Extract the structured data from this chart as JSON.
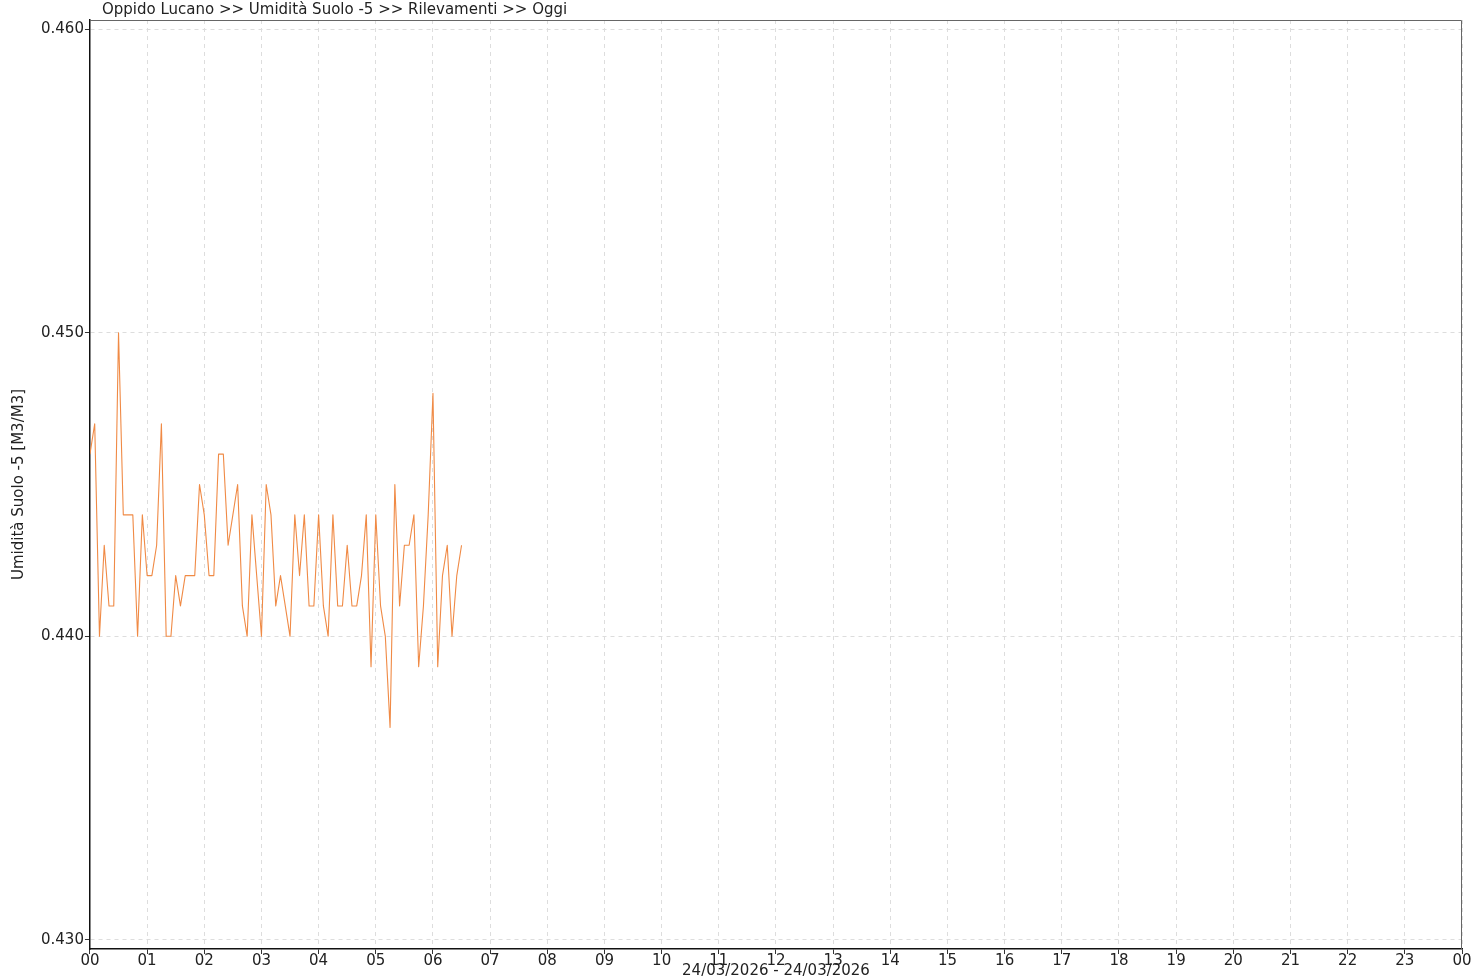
{
  "chart_data": {
    "type": "line",
    "title": "Oppido Lucano >> Umidità Suolo -5 >> Rilevamenti >> Oggi",
    "xlabel": "24/03/2026 - 24/03/2026",
    "ylabel": "Umidità Suolo -5 [M3/M3]",
    "x": [
      "2026-03-24T00:00",
      "2026-03-24T00:05",
      "2026-03-24T00:10",
      "2026-03-24T00:15",
      "2026-03-24T00:20",
      "2026-03-24T00:25",
      "2026-03-24T00:30",
      "2026-03-24T00:35",
      "2026-03-24T00:40",
      "2026-03-24T00:45",
      "2026-03-24T00:50",
      "2026-03-24T00:55",
      "2026-03-24T01:00",
      "2026-03-24T01:05",
      "2026-03-24T01:10",
      "2026-03-24T01:15",
      "2026-03-24T01:20",
      "2026-03-24T01:25",
      "2026-03-24T01:30",
      "2026-03-24T01:35",
      "2026-03-24T01:40",
      "2026-03-24T01:45",
      "2026-03-24T01:50",
      "2026-03-24T01:55",
      "2026-03-24T02:00",
      "2026-03-24T02:05",
      "2026-03-24T02:10",
      "2026-03-24T02:15",
      "2026-03-24T02:20",
      "2026-03-24T02:25",
      "2026-03-24T02:30",
      "2026-03-24T02:35",
      "2026-03-24T02:40",
      "2026-03-24T02:45",
      "2026-03-24T02:50",
      "2026-03-24T02:55",
      "2026-03-24T03:00",
      "2026-03-24T03:05",
      "2026-03-24T03:10",
      "2026-03-24T03:15",
      "2026-03-24T03:20",
      "2026-03-24T03:25",
      "2026-03-24T03:30",
      "2026-03-24T03:35",
      "2026-03-24T03:40",
      "2026-03-24T03:45",
      "2026-03-24T03:50",
      "2026-03-24T03:55",
      "2026-03-24T04:00",
      "2026-03-24T04:05",
      "2026-03-24T04:10",
      "2026-03-24T04:15",
      "2026-03-24T04:20",
      "2026-03-24T04:25",
      "2026-03-24T04:30",
      "2026-03-24T04:35",
      "2026-03-24T04:40",
      "2026-03-24T04:45",
      "2026-03-24T04:50",
      "2026-03-24T04:55",
      "2026-03-24T05:00",
      "2026-03-24T05:05",
      "2026-03-24T05:10",
      "2026-03-24T05:15",
      "2026-03-24T05:20",
      "2026-03-24T05:25",
      "2026-03-24T05:30",
      "2026-03-24T05:35",
      "2026-03-24T05:40",
      "2026-03-24T05:45",
      "2026-03-24T05:50",
      "2026-03-24T05:55",
      "2026-03-24T06:00",
      "2026-03-24T06:05",
      "2026-03-24T06:10",
      "2026-03-24T06:15",
      "2026-03-24T06:20",
      "2026-03-24T06:25",
      "2026-03-24T06:30"
    ],
    "series": [
      {
        "color": "#f08a45",
        "values": [
          0.446,
          0.447,
          0.44,
          0.443,
          0.441,
          0.441,
          0.45,
          0.444,
          0.444,
          0.444,
          0.44,
          0.444,
          0.442,
          0.442,
          0.443,
          0.447,
          0.44,
          0.44,
          0.442,
          0.441,
          0.442,
          0.442,
          0.442,
          0.445,
          0.444,
          0.442,
          0.442,
          0.446,
          0.446,
          0.443,
          0.444,
          0.445,
          0.441,
          0.44,
          0.444,
          0.442,
          0.44,
          0.445,
          0.444,
          0.441,
          0.442,
          0.441,
          0.44,
          0.444,
          0.442,
          0.444,
          0.441,
          0.441,
          0.444,
          0.441,
          0.44,
          0.444,
          0.441,
          0.441,
          0.443,
          0.441,
          0.441,
          0.442,
          0.444,
          0.439,
          0.444,
          0.441,
          0.44,
          0.437,
          0.445,
          0.441,
          0.443,
          0.443,
          0.444,
          0.439,
          0.441,
          0.444,
          0.448,
          0.439,
          0.442,
          0.443,
          0.44,
          0.442,
          0.443
        ]
      }
    ],
    "xlim": [
      "2026-03-24T00:00",
      "2026-03-25T00:00"
    ],
    "xticks": [
      {
        "value": "2026-03-24T00:00",
        "label": "00"
      },
      {
        "value": "2026-03-24T01:00",
        "label": "01"
      },
      {
        "value": "2026-03-24T02:00",
        "label": "02"
      },
      {
        "value": "2026-03-24T03:00",
        "label": "03"
      },
      {
        "value": "2026-03-24T04:00",
        "label": "04"
      },
      {
        "value": "2026-03-24T05:00",
        "label": "05"
      },
      {
        "value": "2026-03-24T06:00",
        "label": "06"
      },
      {
        "value": "2026-03-24T07:00",
        "label": "07"
      },
      {
        "value": "2026-03-24T08:00",
        "label": "08"
      },
      {
        "value": "2026-03-24T09:00",
        "label": "09"
      },
      {
        "value": "2026-03-24T10:00",
        "label": "10"
      },
      {
        "value": "2026-03-24T11:00",
        "label": "11"
      },
      {
        "value": "2026-03-24T12:00",
        "label": "12"
      },
      {
        "value": "2026-03-24T13:00",
        "label": "13"
      },
      {
        "value": "2026-03-24T14:00",
        "label": "14"
      },
      {
        "value": "2026-03-24T15:00",
        "label": "15"
      },
      {
        "value": "2026-03-24T16:00",
        "label": "16"
      },
      {
        "value": "2026-03-24T17:00",
        "label": "17"
      },
      {
        "value": "2026-03-24T18:00",
        "label": "18"
      },
      {
        "value": "2026-03-24T19:00",
        "label": "19"
      },
      {
        "value": "2026-03-24T20:00",
        "label": "20"
      },
      {
        "value": "2026-03-24T21:00",
        "label": "21"
      },
      {
        "value": "2026-03-24T22:00",
        "label": "22"
      },
      {
        "value": "2026-03-24T23:00",
        "label": "23"
      },
      {
        "value": "2026-03-25T00:00",
        "label": "00"
      }
    ],
    "ylim": [
      0.4297,
      0.4603
    ],
    "yticks": [
      {
        "value": 0.43,
        "label": "0.430"
      },
      {
        "value": 0.44,
        "label": "0.440"
      },
      {
        "value": 0.45,
        "label": "0.450"
      },
      {
        "value": 0.46,
        "label": "0.460"
      }
    ],
    "grid": true,
    "marker": "none",
    "line_style": "solid"
  }
}
